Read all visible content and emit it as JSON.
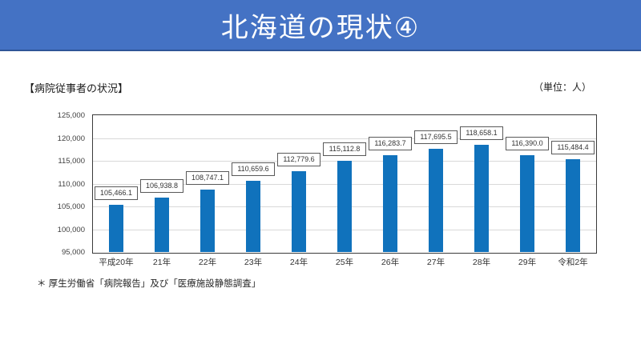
{
  "banner": {
    "title": "北海道の現状④",
    "bg_color": "#4472C4",
    "border_color": "#2F5597",
    "text_color": "#FFFFFF"
  },
  "section": {
    "heading": "【病院従事者の状況】",
    "unit_label": "（単位：人）"
  },
  "footnote": "＊ 厚生労働省「病院報告」及び「医療施設静態調査」",
  "chart_data": {
    "type": "bar",
    "title": "",
    "xlabel": "",
    "ylabel": "",
    "categories": [
      "平成20年",
      "21年",
      "22年",
      "23年",
      "24年",
      "25年",
      "26年",
      "27年",
      "28年",
      "29年",
      "令和2年"
    ],
    "values": [
      105466.1,
      106938.8,
      108747.1,
      110659.6,
      112779.6,
      115112.8,
      116283.7,
      117695.5,
      118658.1,
      116390.0,
      115484.4
    ],
    "data_labels": [
      "105,466.1",
      "106,938.8",
      "108,747.1",
      "110,659.6",
      "112,779.6",
      "115,112.8",
      "116,283.7",
      "117,695.5",
      "118,658.1",
      "116,390.0",
      "115,484.4"
    ],
    "ylim": [
      95000,
      125000
    ],
    "ytick_step": 5000,
    "ytick_labels": [
      "95,000",
      "100,000",
      "105,000",
      "110,000",
      "115,000",
      "120,000",
      "125,000"
    ],
    "bar_color": "#1072BC",
    "gridline_color": "#D9D9D9",
    "grid": true,
    "legend": false,
    "data_labels_boxed": true
  }
}
